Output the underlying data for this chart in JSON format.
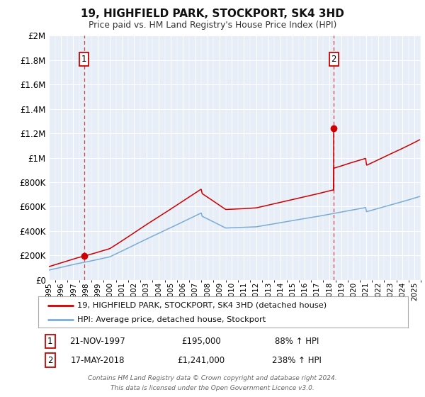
{
  "title": "19, HIGHFIELD PARK, STOCKPORT, SK4 3HD",
  "subtitle": "Price paid vs. HM Land Registry's House Price Index (HPI)",
  "fig_bg": "#ffffff",
  "plot_bg": "#e8eef7",
  "grid_color": "#ffffff",
  "red_line_color": "#cc0000",
  "blue_line_color": "#7aadd4",
  "dashed_color": "#cc3333",
  "marker_color": "#cc0000",
  "ann_box_edge": "#cc0000",
  "ylim": [
    0,
    2000000
  ],
  "yticks": [
    0,
    200000,
    400000,
    600000,
    800000,
    1000000,
    1200000,
    1400000,
    1600000,
    1800000,
    2000000
  ],
  "ytick_labels": [
    "£0",
    "£200K",
    "£400K",
    "£600K",
    "£800K",
    "£1M",
    "£1.2M",
    "£1.4M",
    "£1.6M",
    "£1.8M",
    "£2M"
  ],
  "xlim_start": 1995.0,
  "xlim_end": 2025.5,
  "xticks": [
    1995,
    1996,
    1997,
    1998,
    1999,
    2000,
    2001,
    2002,
    2003,
    2004,
    2005,
    2006,
    2007,
    2008,
    2009,
    2010,
    2011,
    2012,
    2013,
    2014,
    2015,
    2016,
    2017,
    2018,
    2019,
    2020,
    2021,
    2022,
    2023,
    2024,
    2025
  ],
  "point1_x": 1997.89,
  "point1_y": 195000,
  "point1_label": "1",
  "point1_date": "21-NOV-1997",
  "point1_price": "£195,000",
  "point1_hpi": "88% ↑ HPI",
  "point2_x": 2018.37,
  "point2_y": 1241000,
  "point2_label": "2",
  "point2_date": "17-MAY-2018",
  "point2_price": "£1,241,000",
  "point2_hpi": "238% ↑ HPI",
  "legend_line1": "19, HIGHFIELD PARK, STOCKPORT, SK4 3HD (detached house)",
  "legend_line2": "HPI: Average price, detached house, Stockport",
  "footer_line1": "Contains HM Land Registry data © Crown copyright and database right 2024.",
  "footer_line2": "This data is licensed under the Open Government Licence v3.0."
}
